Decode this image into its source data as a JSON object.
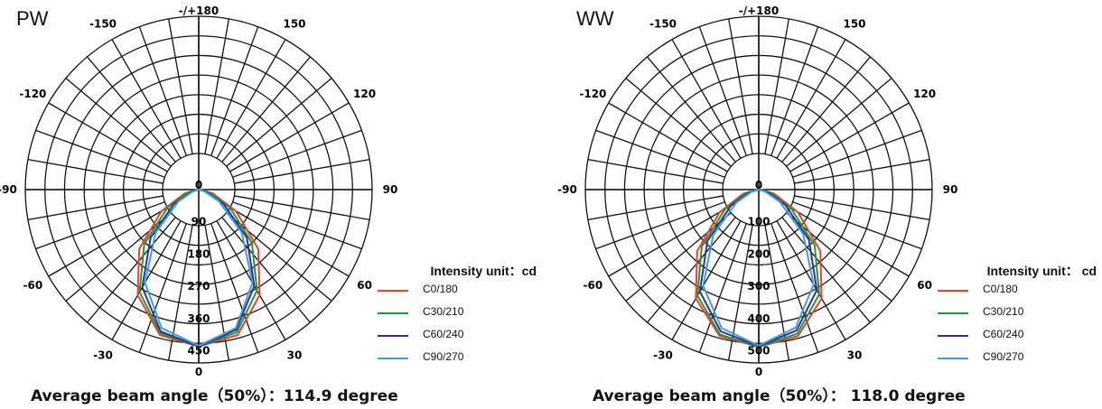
{
  "chart_data": [
    {
      "type": "polar",
      "title": "PW",
      "angle_ticks": [
        "-/+180",
        "150",
        "120",
        "90",
        "60",
        "30",
        "0",
        "-30",
        "-60",
        "-90",
        "-120",
        "-150"
      ],
      "radial_ticks": [
        "0",
        "90",
        "180",
        "270",
        "360",
        "450"
      ],
      "radial_max": 450,
      "legend_title": "Intensity unit：cd",
      "series": [
        {
          "name": "C0/180",
          "color": "#e8412c",
          "max": 438,
          "angles": [
            -90,
            -75,
            -60,
            -45,
            -30,
            -15,
            0,
            15,
            30,
            45,
            60,
            75,
            90
          ],
          "values": [
            0,
            40,
            120,
            235,
            340,
            420,
            438,
            420,
            340,
            235,
            120,
            40,
            0
          ]
        },
        {
          "name": "C30/210",
          "color": "#1f9a3b",
          "max": 438,
          "angles": [
            -90,
            -75,
            -60,
            -45,
            -30,
            -15,
            0,
            15,
            30,
            45,
            60,
            75,
            90
          ],
          "values": [
            0,
            30,
            100,
            215,
            330,
            415,
            438,
            412,
            325,
            210,
            100,
            30,
            0
          ]
        },
        {
          "name": "C60/240",
          "color": "#3a2f8f",
          "max": 438,
          "angles": [
            -90,
            -75,
            -60,
            -45,
            -30,
            -15,
            0,
            15,
            30,
            45,
            60,
            75,
            90
          ],
          "values": [
            0,
            20,
            80,
            190,
            315,
            410,
            438,
            405,
            310,
            190,
            80,
            20,
            0
          ]
        },
        {
          "name": "C90/270",
          "color": "#3e9fe0",
          "max": 438,
          "angles": [
            -90,
            -75,
            -60,
            -45,
            -30,
            -15,
            0,
            15,
            30,
            45,
            60,
            75,
            90
          ],
          "values": [
            0,
            15,
            65,
            170,
            300,
            400,
            436,
            400,
            300,
            170,
            65,
            15,
            0
          ]
        }
      ],
      "caption": "Average  beam angle（50%）：114.9 degree"
    },
    {
      "type": "polar",
      "title": "WW",
      "angle_ticks": [
        "-/+180",
        "150",
        "120",
        "90",
        "60",
        "30",
        "0",
        "-30",
        "-60",
        "-90",
        "-120",
        "-150"
      ],
      "radial_ticks": [
        "0",
        "100",
        "200",
        "300",
        "400",
        "500"
      ],
      "radial_max": 500,
      "legend_title": "Intensity unit： cd",
      "series": [
        {
          "name": "C0/180",
          "color": "#e8412c",
          "max": 488,
          "angles": [
            -90,
            -75,
            -60,
            -45,
            -30,
            -15,
            0,
            15,
            30,
            45,
            60,
            75,
            90
          ],
          "values": [
            0,
            50,
            140,
            270,
            390,
            470,
            488,
            470,
            390,
            270,
            140,
            50,
            0
          ]
        },
        {
          "name": "C30/210",
          "color": "#1f9a3b",
          "max": 488,
          "angles": [
            -90,
            -75,
            -60,
            -45,
            -30,
            -15,
            0,
            15,
            30,
            45,
            60,
            75,
            90
          ],
          "values": [
            0,
            40,
            120,
            250,
            380,
            465,
            488,
            462,
            375,
            245,
            115,
            38,
            0
          ]
        },
        {
          "name": "C60/240",
          "color": "#3a2f8f",
          "max": 488,
          "angles": [
            -90,
            -75,
            -60,
            -45,
            -30,
            -15,
            0,
            15,
            30,
            45,
            60,
            75,
            90
          ],
          "values": [
            0,
            30,
            100,
            225,
            365,
            455,
            486,
            452,
            360,
            220,
            95,
            28,
            0
          ]
        },
        {
          "name": "C90/270",
          "color": "#3e9fe0",
          "max": 488,
          "angles": [
            -90,
            -75,
            -60,
            -45,
            -30,
            -15,
            0,
            15,
            30,
            45,
            60,
            75,
            90
          ],
          "values": [
            0,
            20,
            80,
            200,
            345,
            445,
            484,
            443,
            340,
            195,
            75,
            18,
            0
          ]
        }
      ],
      "caption": "Average  beam angle（50%）： 118.0 degree"
    }
  ]
}
